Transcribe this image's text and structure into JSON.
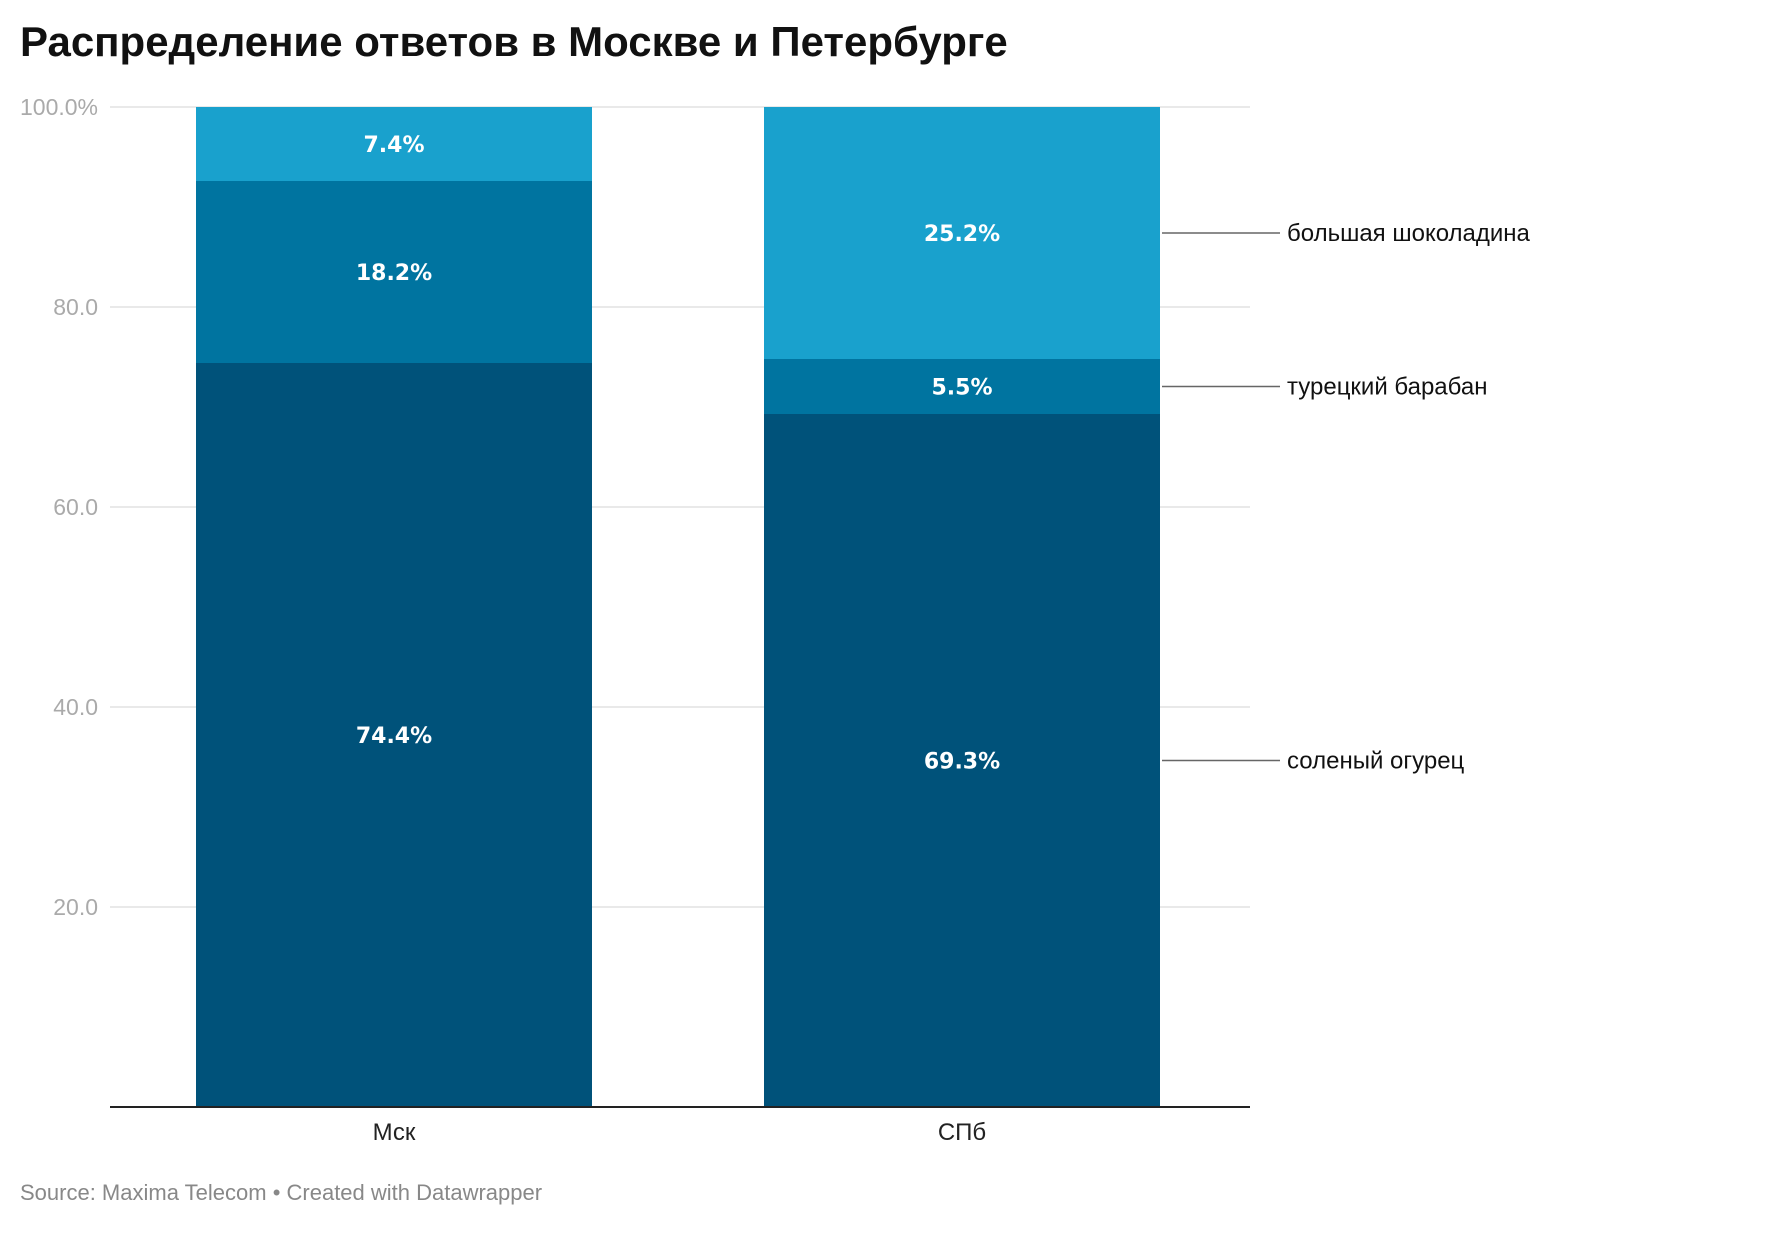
{
  "chart_data": {
    "type": "bar",
    "stacked": true,
    "title": "Распределение ответов в Москве и Петербурге",
    "categories": [
      "Мск",
      "СПб"
    ],
    "series": [
      {
        "name": "соленый огурец",
        "values": [
          74.4,
          69.3
        ],
        "labels": [
          "74.4%",
          "69.3%"
        ],
        "color": "#00527a"
      },
      {
        "name": "турецкий барабан",
        "values": [
          18.2,
          5.5
        ],
        "labels": [
          "18.2%",
          "5.5%"
        ],
        "color": "#0074a0"
      },
      {
        "name": "большая шоколадина",
        "values": [
          7.4,
          25.2
        ],
        "labels": [
          "7.4%",
          "25.2%"
        ],
        "color": "#19a1cd"
      }
    ],
    "ylim": [
      0,
      100
    ],
    "yticks": [
      20,
      40,
      60,
      80,
      100
    ],
    "ytick_labels": [
      "20.0",
      "40.0",
      "60.0",
      "80.0",
      "100.0%"
    ],
    "grid": true,
    "legend": "direct labels right of last bar",
    "source": "Source: Maxima Telecom • Created with Datawrapper"
  }
}
